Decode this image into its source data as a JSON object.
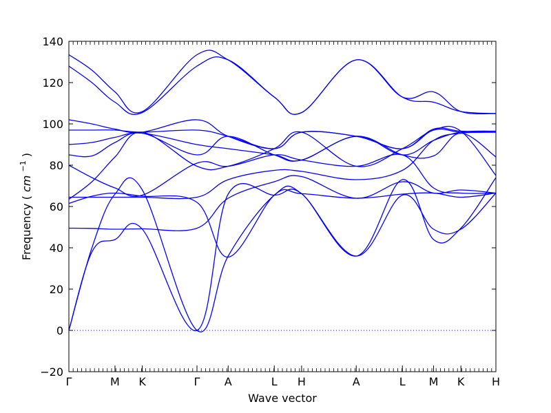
{
  "chart_data": {
    "type": "line",
    "xlabel": "Wave vector",
    "ylabel": "Frequency",
    "ylabel_unit": "cm",
    "ylabel_unit_exponent": "−1",
    "ylim": [
      -20,
      140
    ],
    "yticks": [
      -20,
      0,
      20,
      40,
      60,
      80,
      100,
      120,
      140
    ],
    "ytick_labels": [
      "−20",
      "0",
      "20",
      "40",
      "60",
      "80",
      "100",
      "120",
      "140"
    ],
    "x_high_symmetry_points": [
      {
        "label": "Γ",
        "x": 0.0
      },
      {
        "label": "M",
        "x": 0.108
      },
      {
        "label": "K",
        "x": 0.172
      },
      {
        "label": "Γ",
        "x": 0.3
      },
      {
        "label": "A",
        "x": 0.373
      },
      {
        "label": "L",
        "x": 0.481
      },
      {
        "label": "H",
        "x": 0.545
      },
      {
        "label": "A",
        "x": 0.673
      },
      {
        "label": "L",
        "x": 0.781
      },
      {
        "label": "M",
        "x": 0.854
      },
      {
        "label": "K",
        "x": 0.918
      },
      {
        "label": "H",
        "x": 1.0
      }
    ],
    "xlim": [
      0,
      1
    ],
    "zero_line": {
      "y": 0,
      "style": "dotted"
    },
    "line_color": "#0000ff",
    "grid": false,
    "series": [
      {
        "x": [
          0,
          0.054,
          0.108,
          0.172,
          0.3,
          0.373,
          0.481,
          0.545,
          0.673,
          0.781,
          0.854,
          0.918,
          1.0
        ],
        "y": [
          0,
          40,
          66,
          68,
          0,
          36,
          65.5,
          66.2,
          36,
          65.5,
          49,
          49,
          66.5
        ]
      },
      {
        "x": [
          0,
          0.054,
          0.108,
          0.172,
          0.3,
          0.373,
          0.481,
          0.545,
          0.673,
          0.781,
          0.854,
          0.918,
          1.0
        ],
        "y": [
          0,
          38,
          44,
          49,
          0,
          66,
          65.5,
          66.2,
          36,
          73,
          44,
          49.5,
          74
        ]
      },
      {
        "x": [
          0,
          0.054,
          0.108,
          0.172,
          0.3,
          0.373,
          0.481,
          0.545,
          0.673,
          0.781,
          0.854,
          0.918,
          1.0
        ],
        "y": [
          49.5,
          49.4,
          49,
          49.2,
          49.5,
          64,
          72,
          74.5,
          64,
          72,
          66.5,
          68,
          66.5
        ]
      },
      {
        "x": [
          0,
          0.054,
          0.108,
          0.172,
          0.3,
          0.373,
          0.481,
          0.545,
          0.673,
          0.781,
          0.854,
          0.918,
          1.0
        ],
        "y": [
          61.5,
          65,
          66.5,
          65,
          62,
          35.5,
          65.5,
          66.2,
          64,
          66,
          66.5,
          64.5,
          66.5
        ]
      },
      {
        "x": [
          0,
          0.054,
          0.108,
          0.172,
          0.3,
          0.373,
          0.481,
          0.545,
          0.673,
          0.781,
          0.854,
          0.918,
          1.0
        ],
        "y": [
          64.5,
          64.5,
          64.5,
          64.5,
          64.5,
          73,
          77.5,
          77,
          73,
          77.5,
          92,
          95.5,
          96
        ]
      },
      {
        "x": [
          0,
          0.054,
          0.108,
          0.172,
          0.3,
          0.373,
          0.481,
          0.545,
          0.673,
          0.781,
          0.854,
          0.918,
          1.0
        ],
        "y": [
          63.5,
          72,
          84,
          96,
          79.5,
          79.5,
          88,
          96,
          79.5,
          88,
          97,
          96.5,
          75
        ]
      },
      {
        "x": [
          0,
          0.054,
          0.108,
          0.172,
          0.3,
          0.373,
          0.481,
          0.545,
          0.673,
          0.781,
          0.854,
          0.918,
          1.0
        ],
        "y": [
          80,
          74,
          69,
          65.5,
          81,
          79.5,
          85,
          82.5,
          79.5,
          85,
          69,
          66.5,
          66.5
        ]
      },
      {
        "x": [
          0,
          0.054,
          0.108,
          0.172,
          0.3,
          0.373,
          0.481,
          0.545,
          0.673,
          0.781,
          0.854,
          0.918,
          1.0
        ],
        "y": [
          85,
          84.5,
          91,
          95.5,
          85,
          94,
          85,
          82.5,
          94,
          85,
          84.5,
          95.5,
          84
        ]
      },
      {
        "x": [
          0,
          0.054,
          0.108,
          0.172,
          0.3,
          0.373,
          0.481,
          0.545,
          0.673,
          0.781,
          0.854,
          0.918,
          1.0
        ],
        "y": [
          90,
          91,
          93.5,
          95.5,
          90,
          88,
          85,
          82.5,
          94,
          85,
          92,
          96,
          96.5
        ]
      },
      {
        "x": [
          0,
          0.054,
          0.108,
          0.172,
          0.3,
          0.373,
          0.481,
          0.545,
          0.673,
          0.781,
          0.854,
          0.918,
          1.0
        ],
        "y": [
          97,
          97,
          97,
          96,
          97,
          94,
          88,
          96,
          94,
          88,
          97.5,
          96.5,
          96
        ]
      },
      {
        "x": [
          0,
          0.054,
          0.108,
          0.172,
          0.3,
          0.373,
          0.481,
          0.545,
          0.673,
          0.781,
          0.854,
          0.918,
          1.0
        ],
        "y": [
          102,
          100,
          97.5,
          96,
          102,
          94,
          88,
          96,
          94,
          88,
          97,
          96,
          96
        ]
      },
      {
        "x": [
          0,
          0.054,
          0.108,
          0.172,
          0.3,
          0.373,
          0.481,
          0.545,
          0.673,
          0.781,
          0.854,
          0.918,
          1.0
        ],
        "y": [
          128,
          120,
          110.5,
          105.5,
          128,
          131,
          113,
          105.5,
          131,
          113,
          110.5,
          106,
          105
        ]
      },
      {
        "x": [
          0,
          0.054,
          0.108,
          0.172,
          0.3,
          0.373,
          0.481,
          0.545,
          0.673,
          0.781,
          0.854,
          0.918,
          1.0
        ],
        "y": [
          133.5,
          126,
          115.5,
          106,
          133.5,
          131,
          113,
          105.5,
          131,
          113,
          115.5,
          106,
          105
        ]
      }
    ]
  }
}
